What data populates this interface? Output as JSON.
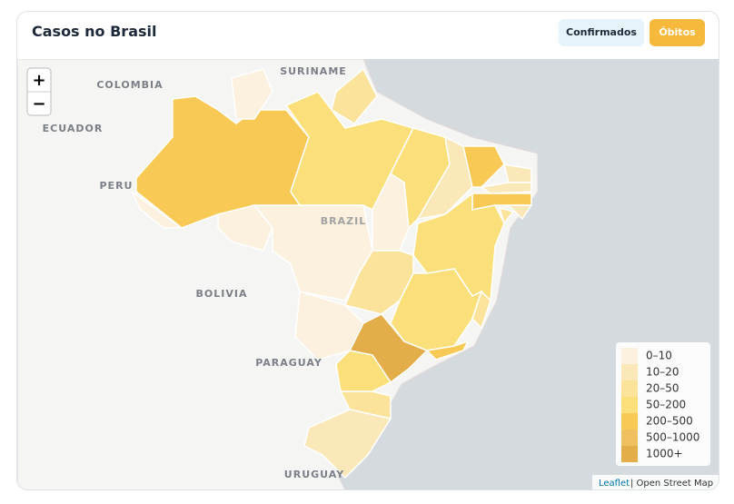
{
  "header": {
    "title": "Casos no Brasil",
    "buttons": [
      {
        "label": "Confirmados",
        "active": false
      },
      {
        "label": "Óbitos",
        "active": true
      }
    ]
  },
  "zoom": {
    "in": "+",
    "out": "−"
  },
  "map_labels": [
    "COLOMBIA",
    "SURINAME",
    "ECUADOR",
    "PERU",
    "BOLIVIA",
    "PARAGUAY",
    "URUGUAY",
    "BRAZIL"
  ],
  "legend": {
    "items": [
      {
        "label": "0–10",
        "color": "#fcf1de"
      },
      {
        "label": "10–20",
        "color": "#fbe8b8"
      },
      {
        "label": "20–50",
        "color": "#fbe39c"
      },
      {
        "label": "50–200",
        "color": "#fbdf7a"
      },
      {
        "label": "200–500",
        "color": "#f8ca55"
      },
      {
        "label": "500–1000",
        "color": "#efc060"
      },
      {
        "label": "1000+",
        "color": "#e3ad4a"
      }
    ]
  },
  "attribution": {
    "link": "Leaflet",
    "text": "| Open Street Map"
  }
}
